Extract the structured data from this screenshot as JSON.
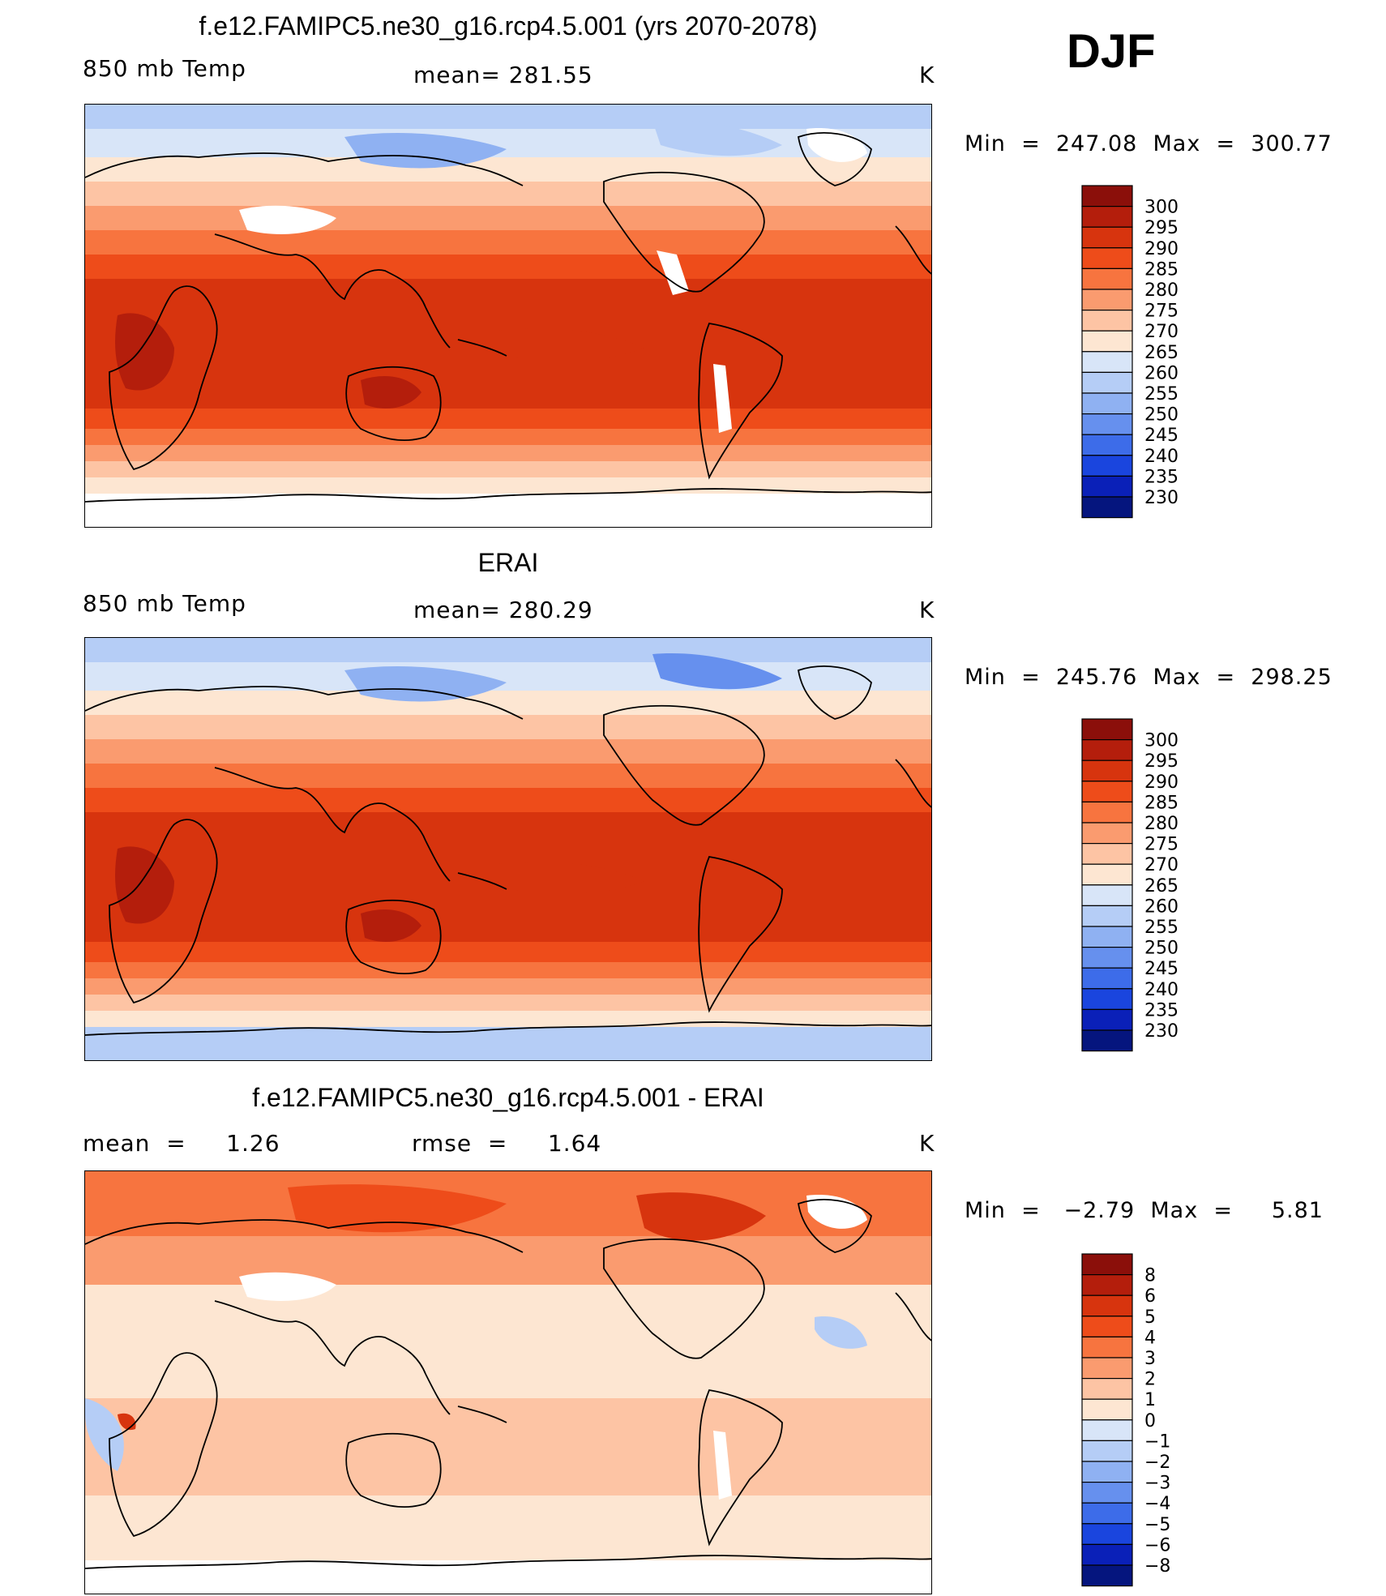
{
  "season": "DJF",
  "panels": [
    {
      "title": "f.e12.FAMIPC5.ne30_g16.rcp4.5.001 (yrs 2070-2078)",
      "left_label": "850 mb Temp",
      "center_label": "mean= 281.55",
      "units": "K",
      "minmax": "Min  =  247.08  Max  =  300.77",
      "kind": "abs",
      "mean_value": 281.55,
      "min_value": 247.08,
      "max_value": 300.77
    },
    {
      "title": "ERAI",
      "left_label": "850 mb Temp",
      "center_label": "mean= 280.29",
      "units": "K",
      "minmax": "Min  =  245.76  Max  =  298.25",
      "kind": "abs",
      "mean_value": 280.29,
      "min_value": 245.76,
      "max_value": 298.25
    },
    {
      "title": "f.e12.FAMIPC5.ne30_g16.rcp4.5.001 - ERAI",
      "left_label": "mean  =     1.26",
      "center_label": "rmse  =     1.64",
      "units": "K",
      "minmax": "Min  =   −2.79  Max  =     5.81",
      "kind": "diff",
      "mean_value": 1.26,
      "rmse_value": 1.64,
      "min_value": -2.79,
      "max_value": 5.81
    }
  ],
  "colorbars": {
    "abs": {
      "labels": [
        "300",
        "295",
        "290",
        "285",
        "280",
        "275",
        "270",
        "265",
        "260",
        "255",
        "250",
        "245",
        "240",
        "235",
        "230"
      ],
      "colors": [
        "#8b0f0a",
        "#b41e0c",
        "#d7340e",
        "#ee4c1a",
        "#f7743f",
        "#fa9b6f",
        "#fdc4a4",
        "#fde6d2",
        "#d8e5f8",
        "#b5cdf6",
        "#8fb1f2",
        "#6690ee",
        "#3d6ce9",
        "#1a45de",
        "#0a20b8",
        "#05157e"
      ]
    },
    "diff": {
      "labels": [
        "8",
        "6",
        "5",
        "4",
        "3",
        "2",
        "1",
        "0",
        "−1",
        "−2",
        "−3",
        "−4",
        "−5",
        "−6",
        "−8"
      ],
      "colors": [
        "#8b0f0a",
        "#b41e0c",
        "#d7340e",
        "#ee4c1a",
        "#f7743f",
        "#fa9b6f",
        "#fdc4a4",
        "#fde6d2",
        "#d8e5f8",
        "#b5cdf6",
        "#8fb1f2",
        "#6690ee",
        "#3d6ce9",
        "#1a45de",
        "#0a20b8",
        "#05157e"
      ]
    }
  },
  "chart_data": [
    {
      "type": "heatmap",
      "title": "f.e12.FAMIPC5.ne30_g16.rcp4.5.001 (yrs 2070-2078)",
      "variable": "850 mb Temp",
      "units": "K",
      "mean": 281.55,
      "min": 247.08,
      "max": 300.77,
      "levels": [
        230,
        235,
        240,
        245,
        250,
        255,
        260,
        265,
        270,
        275,
        280,
        285,
        290,
        295,
        300
      ],
      "season": "DJF"
    },
    {
      "type": "heatmap",
      "title": "ERAI",
      "variable": "850 mb Temp",
      "units": "K",
      "mean": 280.29,
      "min": 245.76,
      "max": 298.25,
      "levels": [
        230,
        235,
        240,
        245,
        250,
        255,
        260,
        265,
        270,
        275,
        280,
        285,
        290,
        295,
        300
      ],
      "season": "DJF"
    },
    {
      "type": "heatmap",
      "title": "f.e12.FAMIPC5.ne30_g16.rcp4.5.001 - ERAI",
      "units": "K",
      "mean": 1.26,
      "rmse": 1.64,
      "min": -2.79,
      "max": 5.81,
      "levels": [
        -8,
        -6,
        -5,
        -4,
        -3,
        -2,
        -1,
        0,
        1,
        2,
        3,
        4,
        5,
        6,
        8
      ],
      "season": "DJF"
    }
  ]
}
